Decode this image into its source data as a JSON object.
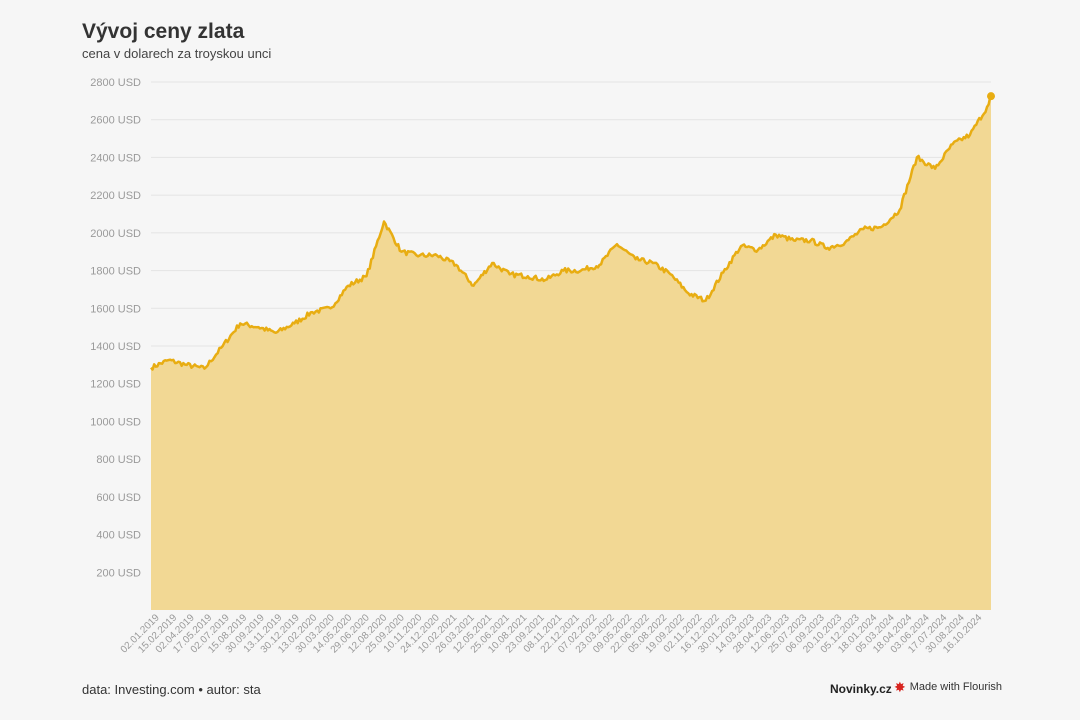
{
  "header": {
    "title": "Vývoj ceny zlata",
    "subtitle": "cena v dolarech za troyskou unci"
  },
  "footer": {
    "source": "data: Investing.com • autor: sta",
    "brand": "Novinky.cz",
    "flourish": "Made with Flourish"
  },
  "colors": {
    "line": "#e8ad12",
    "area": "#f2d894",
    "background": "#f6f6f6",
    "brand_accent": "#d8241f"
  },
  "icons": {
    "flourish": "flourish-burst-icon"
  },
  "chart_data": {
    "type": "area",
    "title": "Vývoj ceny zlata",
    "subtitle": "cena v dolarech za troyskou unci",
    "xlabel": "",
    "ylabel": "",
    "ylim": [
      0,
      2800
    ],
    "y_ticks": [
      200,
      400,
      600,
      800,
      1000,
      1200,
      1400,
      1600,
      1800,
      2000,
      2200,
      2400,
      2600,
      2800
    ],
    "y_tick_suffix": " USD",
    "grid": true,
    "legend": "none",
    "x_tick_labels": [
      "02.01.2019",
      "15.02.2019",
      "02.04.2019",
      "17.05.2019",
      "02.07.2019",
      "15.08.2019",
      "30.09.2019",
      "13.11.2019",
      "30.12.2019",
      "13.02.2020",
      "30.03.2020",
      "14.05.2020",
      "29.06.2020",
      "12.08.2020",
      "25.09.2020",
      "10.11.2020",
      "24.12.2020",
      "10.02.2021",
      "26.03.2021",
      "12.05.2021",
      "25.06.2021",
      "10.08.2021",
      "23.09.2021",
      "08.11.2021",
      "22.12.2021",
      "07.02.2022",
      "23.03.2022",
      "09.05.2022",
      "22.06.2022",
      "05.08.2022",
      "19.09.2022",
      "02.11.2022",
      "16.12.2022",
      "30.01.2023",
      "14.03.2023",
      "28.04.2023",
      "12.06.2023",
      "25.07.2023",
      "06.09.2023",
      "20.10.2023",
      "05.12.2023",
      "18.01.2024",
      "05.03.2024",
      "18.04.2024",
      "03.06.2024",
      "17.07.2024",
      "30.08.2024",
      "16.10.2024"
    ],
    "series": [
      {
        "x": [
          "2019-01-02",
          "2019-02-15",
          "2019-04-02",
          "2019-05-17",
          "2019-07-02",
          "2019-08-15",
          "2019-09-30",
          "2019-11-13",
          "2019-12-30",
          "2020-02-13",
          "2020-03-30",
          "2020-05-14",
          "2020-06-29",
          "2020-08-12",
          "2020-09-25",
          "2020-11-10",
          "2020-12-24",
          "2021-02-10",
          "2021-03-26",
          "2021-05-12",
          "2021-06-25",
          "2021-08-10",
          "2021-09-23",
          "2021-11-08",
          "2021-12-22",
          "2022-02-07",
          "2022-03-23",
          "2022-05-09",
          "2022-06-22",
          "2022-08-05",
          "2022-09-19",
          "2022-11-02",
          "2022-12-16",
          "2023-01-30",
          "2023-03-14",
          "2023-04-28",
          "2023-06-12",
          "2023-07-25",
          "2023-09-06",
          "2023-10-20",
          "2023-12-05",
          "2024-01-18",
          "2024-03-05",
          "2024-04-18",
          "2024-06-03",
          "2024-07-17",
          "2024-08-30",
          "2024-10-16",
          "2024-10-22"
        ],
        "values": [
          1285,
          1325,
          1300,
          1280,
          1400,
          1520,
          1500,
          1470,
          1520,
          1580,
          1600,
          1720,
          1770,
          2060,
          1900,
          1880,
          1880,
          1830,
          1720,
          1840,
          1780,
          1770,
          1750,
          1800,
          1800,
          1830,
          1940,
          1860,
          1840,
          1780,
          1680,
          1640,
          1790,
          1930,
          1910,
          1990,
          1960,
          1960,
          1920,
          1950,
          2020,
          2030,
          2120,
          2400,
          2340,
          2470,
          2520,
          2680,
          2725
        ]
      }
    ]
  }
}
